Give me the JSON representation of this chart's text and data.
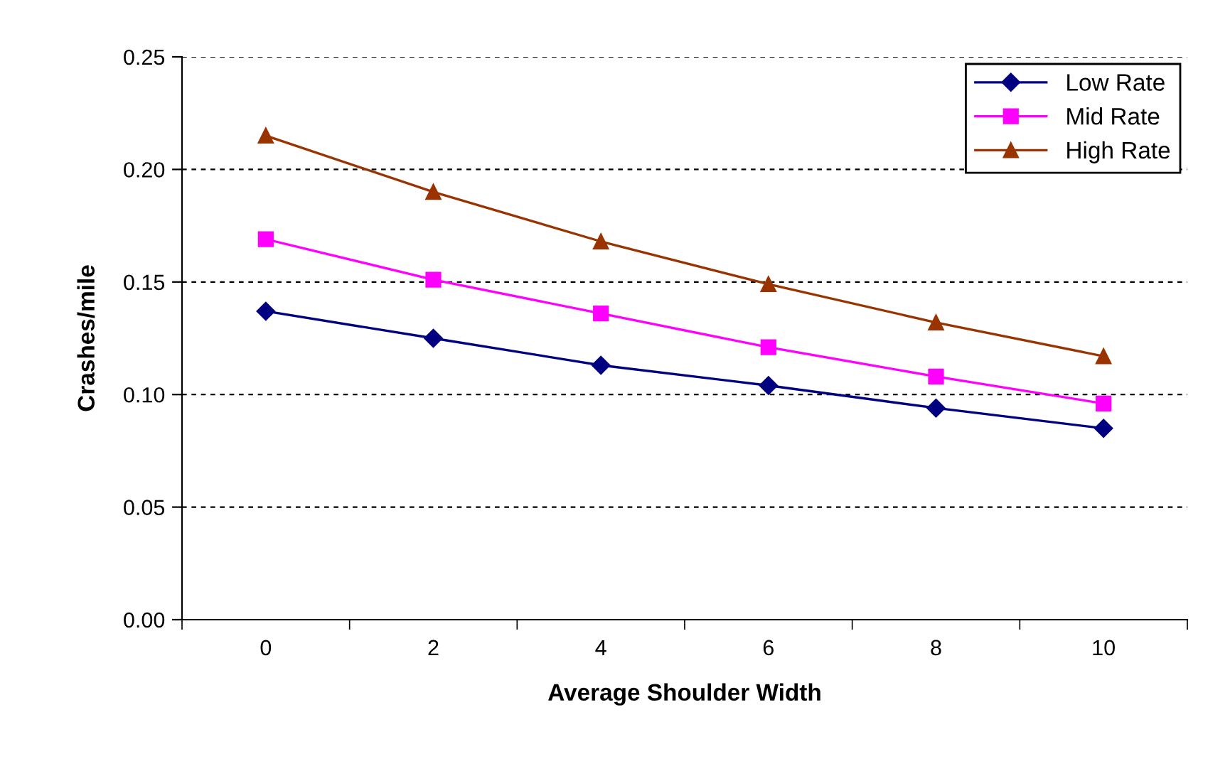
{
  "chart_data": {
    "type": "line",
    "xlabel": "Average Shoulder Width",
    "ylabel": "Crashes/mile",
    "categories": [
      "0",
      "2",
      "4",
      "6",
      "8",
      "10"
    ],
    "series": [
      {
        "name": "Low Rate",
        "color": "#000080",
        "marker": "diamond",
        "values": [
          0.137,
          0.125,
          0.113,
          0.104,
          0.094,
          0.085
        ]
      },
      {
        "name": "Mid Rate",
        "color": "#ff00ff",
        "marker": "square",
        "values": [
          0.169,
          0.151,
          0.136,
          0.121,
          0.108,
          0.096
        ]
      },
      {
        "name": "High Rate",
        "color": "#993300",
        "marker": "triangle",
        "values": [
          0.215,
          0.19,
          0.168,
          0.149,
          0.132,
          0.117
        ]
      }
    ],
    "ylim": [
      0,
      0.25
    ],
    "yticks": [
      {
        "value": 0,
        "label": "0.00"
      },
      {
        "value": 0.05,
        "label": "0.05"
      },
      {
        "value": 0.1,
        "label": "0.10"
      },
      {
        "value": 0.15,
        "label": "0.15"
      },
      {
        "value": 0.2,
        "label": "0.20"
      },
      {
        "value": 0.25,
        "label": "0.25"
      }
    ],
    "grid": "y",
    "legend": "top right",
    "line_style": "solid"
  }
}
